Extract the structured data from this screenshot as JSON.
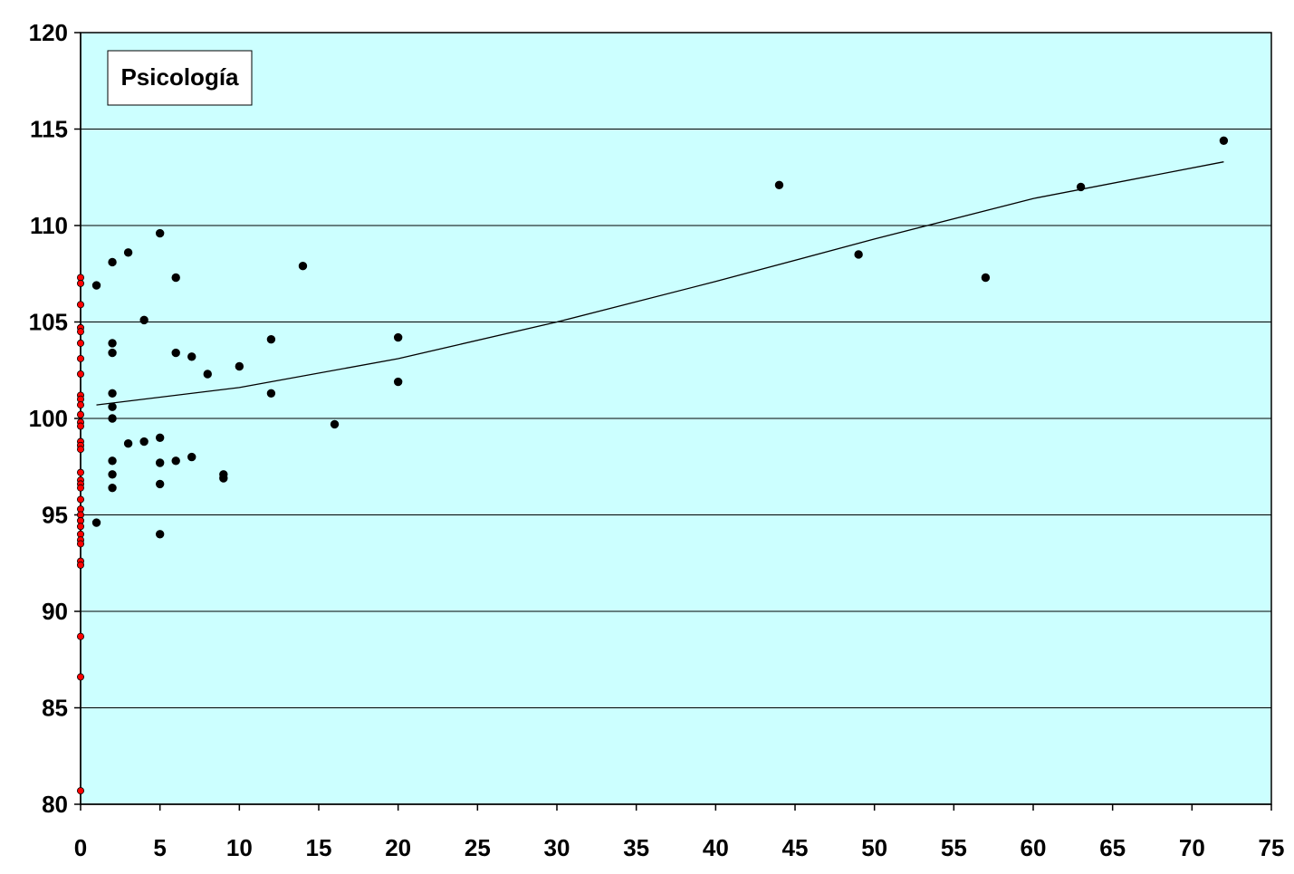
{
  "chart_data": {
    "type": "scatter",
    "inset_label": "Psicología",
    "xlim": [
      0,
      75
    ],
    "ylim": [
      80,
      120
    ],
    "x_ticks": [
      0,
      5,
      10,
      15,
      20,
      25,
      30,
      35,
      40,
      45,
      50,
      55,
      60,
      65,
      70,
      75
    ],
    "y_ticks": [
      80,
      85,
      90,
      95,
      100,
      105,
      110,
      115,
      120
    ],
    "grid": {
      "horizontal": true,
      "vertical": false
    },
    "plot_background": "#ccffff",
    "series": [
      {
        "color": "#000000",
        "points": [
          [
            1,
            106.9
          ],
          [
            1,
            94.6
          ],
          [
            2,
            108.1
          ],
          [
            2,
            103.9
          ],
          [
            2,
            103.4
          ],
          [
            2,
            101.3
          ],
          [
            2,
            100.6
          ],
          [
            2,
            100.0
          ],
          [
            2,
            97.8
          ],
          [
            2,
            97.1
          ],
          [
            2,
            96.4
          ],
          [
            3,
            108.6
          ],
          [
            3,
            98.7
          ],
          [
            4,
            105.1
          ],
          [
            4,
            98.8
          ],
          [
            5,
            109.6
          ],
          [
            5,
            99.0
          ],
          [
            5,
            97.7
          ],
          [
            5,
            96.6
          ],
          [
            5,
            94.0
          ],
          [
            6,
            107.3
          ],
          [
            6,
            103.4
          ],
          [
            6,
            97.8
          ],
          [
            7,
            103.2
          ],
          [
            7,
            98.0
          ],
          [
            8,
            102.3
          ],
          [
            9,
            97.1
          ],
          [
            9,
            96.9
          ],
          [
            10,
            102.7
          ],
          [
            12,
            104.1
          ],
          [
            12,
            101.3
          ],
          [
            14,
            107.9
          ],
          [
            16,
            99.7
          ],
          [
            20,
            104.2
          ],
          [
            20,
            101.9
          ],
          [
            44,
            112.1
          ],
          [
            49,
            108.5
          ],
          [
            57,
            107.3
          ],
          [
            63,
            112.0
          ],
          [
            72,
            114.4
          ]
        ]
      },
      {
        "color": "#ff0000",
        "points": [
          [
            0,
            107.3
          ],
          [
            0,
            107.0
          ],
          [
            0,
            105.9
          ],
          [
            0,
            104.7
          ],
          [
            0,
            104.5
          ],
          [
            0,
            103.9
          ],
          [
            0,
            103.1
          ],
          [
            0,
            102.3
          ],
          [
            0,
            101.2
          ],
          [
            0,
            101.0
          ],
          [
            0,
            100.7
          ],
          [
            0,
            100.2
          ],
          [
            0,
            99.8
          ],
          [
            0,
            99.6
          ],
          [
            0,
            98.8
          ],
          [
            0,
            98.6
          ],
          [
            0,
            98.4
          ],
          [
            0,
            97.2
          ],
          [
            0,
            96.8
          ],
          [
            0,
            96.6
          ],
          [
            0,
            96.4
          ],
          [
            0,
            95.8
          ],
          [
            0,
            95.3
          ],
          [
            0,
            95.0
          ],
          [
            0,
            94.7
          ],
          [
            0,
            94.4
          ],
          [
            0,
            94.0
          ],
          [
            0,
            93.7
          ],
          [
            0,
            93.5
          ],
          [
            0,
            92.6
          ],
          [
            0,
            92.4
          ],
          [
            0,
            88.7
          ],
          [
            0,
            86.6
          ],
          [
            0,
            80.7
          ]
        ]
      }
    ],
    "trend_line": {
      "color": "#000000",
      "points": [
        [
          1,
          100.7
        ],
        [
          10,
          101.6
        ],
        [
          20,
          103.1
        ],
        [
          30,
          105.0
        ],
        [
          40,
          107.1
        ],
        [
          50,
          109.3
        ],
        [
          60,
          111.4
        ],
        [
          72,
          113.3
        ]
      ]
    }
  }
}
